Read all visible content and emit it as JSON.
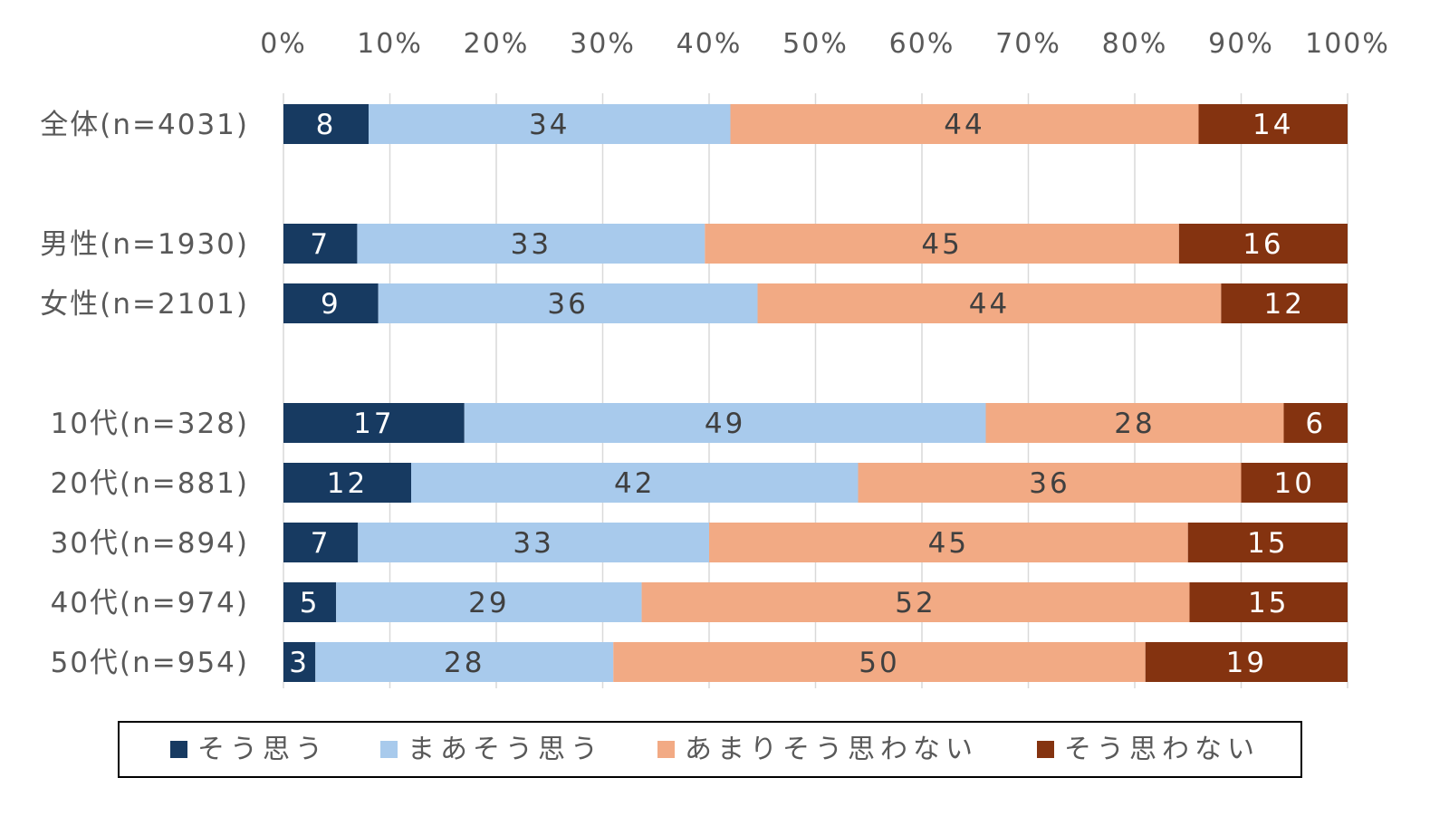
{
  "chart_data": {
    "type": "bar",
    "orientation": "horizontal-stacked-100",
    "title": "",
    "xlabel": "",
    "ylabel": "",
    "xlim": [
      0,
      100
    ],
    "x_ticks": [
      "0%",
      "10%",
      "20%",
      "30%",
      "40%",
      "50%",
      "60%",
      "70%",
      "80%",
      "90%",
      "100%"
    ],
    "grid": true,
    "legend_position": "bottom",
    "categories": [
      "全体(n=4031)",
      "男性(n=1930)",
      "女性(n=2101)",
      "10代(n=328)",
      "20代(n=881)",
      "30代(n=894)",
      "40代(n=974)",
      "50代(n=954)"
    ],
    "category_group_gap_after": [
      0,
      2
    ],
    "series": [
      {
        "name": "そう思う",
        "color": "#173a61",
        "label_color": "#ffffff",
        "values": [
          8,
          7,
          9,
          17,
          12,
          7,
          5,
          3
        ]
      },
      {
        "name": "まあそう思う",
        "color": "#a8caec",
        "label_color": "#404040",
        "values": [
          34,
          33,
          36,
          49,
          42,
          33,
          29,
          28
        ]
      },
      {
        "name": "あまりそう思わない",
        "color": "#f2aa84",
        "label_color": "#404040",
        "values": [
          44,
          45,
          44,
          28,
          36,
          45,
          52,
          50
        ]
      },
      {
        "name": "そう思わない",
        "color": "#843310",
        "label_color": "#ffffff",
        "values": [
          14,
          16,
          12,
          6,
          10,
          15,
          15,
          19
        ]
      }
    ]
  }
}
